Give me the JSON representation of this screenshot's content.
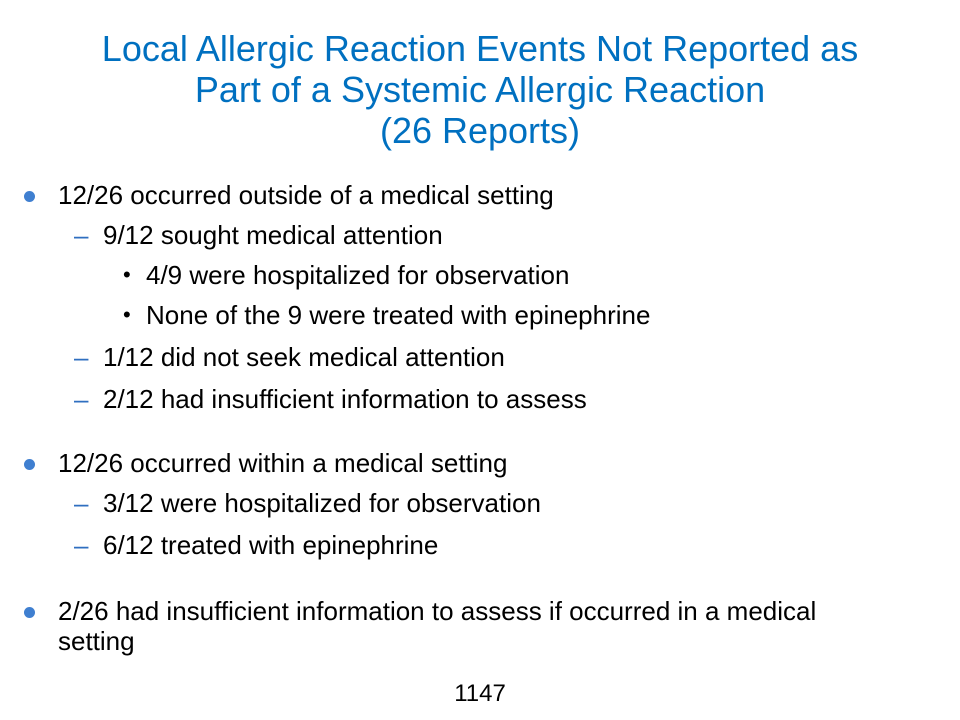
{
  "title": {
    "line1": "Local Allergic Reaction Events Not Reported as",
    "line2": "Part of a Systemic Allergic Reaction",
    "line3": "(26 Reports)"
  },
  "bullets": {
    "b1": {
      "text": "12/26 occurred outside of a medical setting",
      "s1": "9/12 sought medical attention",
      "s1a": "4/9 were hospitalized for observation",
      "s1b": "None of the 9 were treated with epinephrine",
      "s2": "1/12 did not seek medical attention",
      "s3": "2/12 had insufficient information to assess"
    },
    "b2": {
      "text": "12/26 occurred within a medical setting",
      "s1": "3/12 were hospitalized for observation",
      "s2": "6/12 treated with epinephrine"
    },
    "b3": {
      "text": "2/26 had insufficient information to assess if occurred in a medical setting"
    }
  },
  "page_number": "1147",
  "colors": {
    "title": "#0070C0",
    "bullet": "#3F7FD0",
    "dash": "#2F6FC0"
  }
}
